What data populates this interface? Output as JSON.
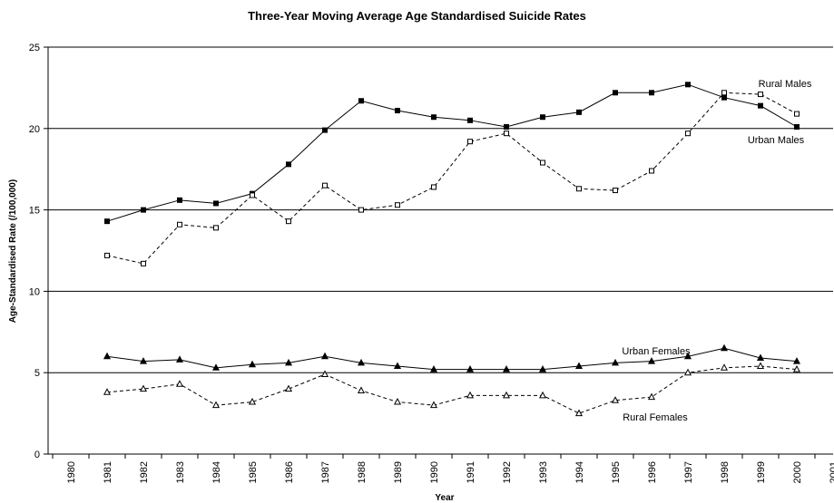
{
  "chart_data": {
    "type": "line",
    "title": "Three-Year Moving Average Age Standardised Suicide Rates",
    "xlabel": "Year",
    "ylabel": "Age-Standardised Rate (/100,000)",
    "x_ticks": [
      "1980",
      "1981",
      "1982",
      "1983",
      "1984",
      "1985",
      "1986",
      "1987",
      "1988",
      "1989",
      "1990",
      "1991",
      "1992",
      "1993",
      "1994",
      "1995",
      "1996",
      "1997",
      "1998",
      "1999",
      "2000",
      "2001"
    ],
    "y_ticks": [
      "0",
      "5",
      "10",
      "15",
      "20",
      "25"
    ],
    "xlim": [
      1980,
      2001
    ],
    "ylim": [
      0,
      25
    ],
    "grid": "horizontal gridlines at 5, 10, 15, 20",
    "x": [
      1981,
      1982,
      1983,
      1984,
      1985,
      1986,
      1987,
      1988,
      1989,
      1990,
      1991,
      1992,
      1993,
      1994,
      1995,
      1996,
      1997,
      1998,
      1999,
      2000
    ],
    "series": [
      {
        "name": "Urban Males",
        "line": "solid",
        "marker": "filled-square",
        "values": [
          14.3,
          15.0,
          15.6,
          15.4,
          16.0,
          17.8,
          19.9,
          21.7,
          21.1,
          20.7,
          20.5,
          20.1,
          20.7,
          21.0,
          22.2,
          22.2,
          22.7,
          21.9,
          21.4,
          20.1
        ]
      },
      {
        "name": "Rural Males",
        "line": "dashed",
        "marker": "open-square",
        "values": [
          12.2,
          11.7,
          14.1,
          13.9,
          15.9,
          14.3,
          16.5,
          15.0,
          15.3,
          16.4,
          19.2,
          19.7,
          17.9,
          16.3,
          16.2,
          17.4,
          19.7,
          22.2,
          22.1,
          20.9
        ]
      },
      {
        "name": "Urban Females",
        "line": "solid",
        "marker": "filled-triangle",
        "values": [
          6.0,
          5.7,
          5.8,
          5.3,
          5.5,
          5.6,
          6.0,
          5.6,
          5.4,
          5.2,
          5.2,
          5.2,
          5.2,
          5.4,
          5.6,
          5.7,
          6.0,
          6.5,
          5.9,
          5.7
        ]
      },
      {
        "name": "Rural Females",
        "line": "dashed",
        "marker": "open-triangle",
        "values": [
          3.8,
          4.0,
          4.3,
          3.0,
          3.2,
          4.0,
          4.9,
          3.9,
          3.2,
          3.0,
          3.6,
          3.6,
          3.6,
          2.5,
          3.3,
          3.5,
          5.0,
          5.3,
          5.4,
          5.2
        ]
      }
    ],
    "labels": [
      {
        "text": "Rural Males",
        "series": "Rural Males"
      },
      {
        "text": "Urban Males",
        "series": "Urban Males"
      },
      {
        "text": "Urban Females",
        "series": "Urban Females"
      },
      {
        "text": "Rural Females",
        "series": "Rural Females"
      }
    ]
  }
}
